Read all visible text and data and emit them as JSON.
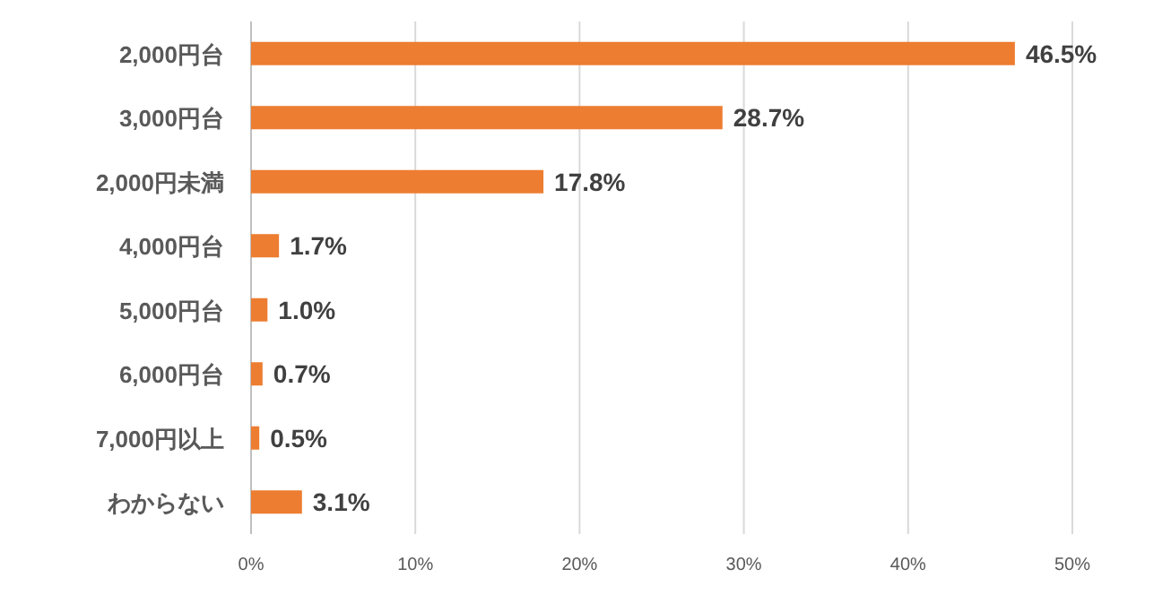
{
  "chart_data": {
    "type": "bar",
    "orientation": "horizontal",
    "categories": [
      "2,000円台",
      "3,000円台",
      "2,000円未満",
      "4,000円台",
      "5,000円台",
      "6,000円台",
      "7,000円以上",
      "わからない"
    ],
    "values": [
      46.5,
      28.7,
      17.8,
      1.7,
      1.0,
      0.7,
      0.5,
      3.1
    ],
    "value_labels": [
      "46.5%",
      "28.7%",
      "17.8%",
      "1.7%",
      "1.0%",
      "0.7%",
      "0.5%",
      "3.1%"
    ],
    "color": "#ed7d31",
    "xlim": [
      0,
      50
    ],
    "xticks": [
      {
        "value": 0,
        "label": "0%"
      },
      {
        "value": 10,
        "label": "10%"
      },
      {
        "value": 20,
        "label": "20%"
      },
      {
        "value": 30,
        "label": "30%"
      },
      {
        "value": 40,
        "label": "40%"
      },
      {
        "value": 50,
        "label": "50%"
      }
    ],
    "grid": "x"
  }
}
